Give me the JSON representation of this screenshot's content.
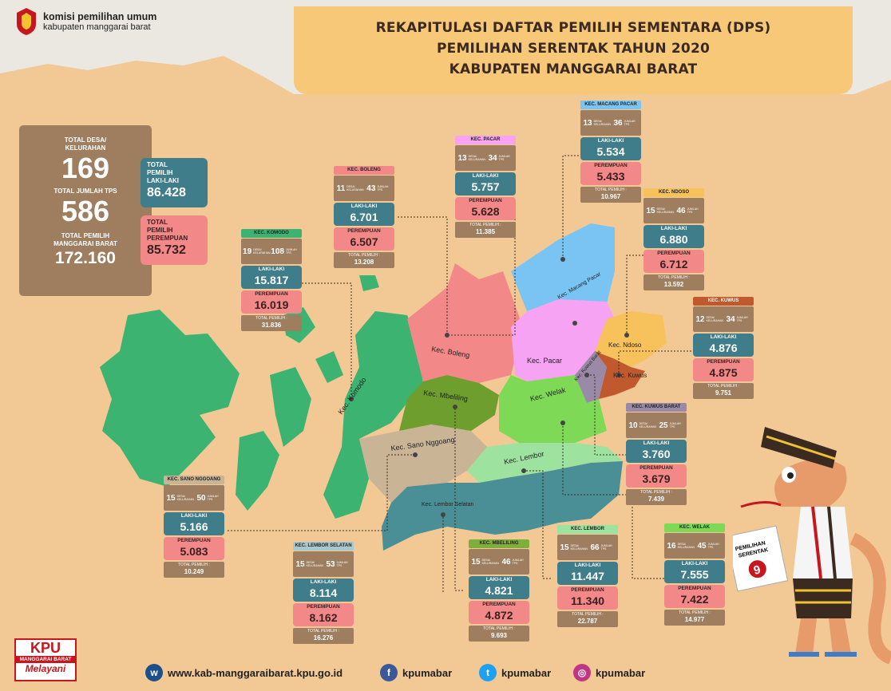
{
  "logo": {
    "line1": "komisi pemilihan umum",
    "line2": "kabupaten manggarai barat"
  },
  "title": {
    "line1": "REKAPITULASI DAFTAR PEMILIH SEMENTARA (DPS)",
    "line2": "PEMILIHAN SERENTAK TAHUN 2020",
    "line3": "KABUPATEN MANGGARAI BARAT"
  },
  "totals": {
    "desa_label_1": "TOTAL DESA/",
    "desa_label_2": "KELURAHAN",
    "desa_value": "169",
    "tps_label": "TOTAL JUMLAH TPS",
    "tps_value": "586",
    "pemilih_label_1": "TOTAL PEMILIH",
    "pemilih_label_2": "MANGGARAI BARAT",
    "pemilih_value": "172.160",
    "laki_label_1": "TOTAL",
    "laki_label_2": "PEMILIH",
    "laki_label_3": "LAKI-LAKI",
    "laki_value": "86.428",
    "perempuan_label_1": "TOTAL",
    "perempuan_label_2": "PEMILIH",
    "perempuan_label_3": "PEREMPUAN",
    "perempuan_value": "85.732"
  },
  "labels": {
    "desa_unit": "DESA/ KELURAHAN",
    "tps_unit": "JUMLAH TPS",
    "laki": "LAKI-LAKI",
    "perempuan": "PEREMPUAN",
    "total": "TOTAL PEMILIH :"
  },
  "districts": [
    {
      "name": "KEC. KOMODO",
      "title_color": "#3cb371",
      "desa": "19",
      "tps": "108",
      "laki": "15.817",
      "perempuan": "16.019",
      "total": "31.836"
    },
    {
      "name": "KEC. BOLENG",
      "title_color": "#f28888",
      "desa": "11",
      "tps": "43",
      "laki": "6.701",
      "perempuan": "6.507",
      "total": "13.208"
    },
    {
      "name": "KEC. PACAR",
      "title_color": "#f5a3f2",
      "desa": "13",
      "tps": "34",
      "laki": "5.757",
      "perempuan": "5.628",
      "total": "11.385"
    },
    {
      "name": "KEC. MACANG PACAR",
      "title_color": "#79c4f2",
      "desa": "13",
      "tps": "36",
      "laki": "5.534",
      "perempuan": "5.433",
      "total": "10.967"
    },
    {
      "name": "KEC. NDOSO",
      "title_color": "#f7c15c",
      "desa": "15",
      "tps": "46",
      "laki": "6.880",
      "perempuan": "6.712",
      "total": "13.592"
    },
    {
      "name": "KEC. KUWUS",
      "title_color": "#c05a2e",
      "desa": "12",
      "tps": "34",
      "laki": "4.876",
      "perempuan": "4.875",
      "total": "9.751"
    },
    {
      "name": "KEC. KUWUS BARAT",
      "title_color": "#9a8aa8",
      "desa": "10",
      "tps": "25",
      "laki": "3.760",
      "perempuan": "3.679",
      "total": "7.439"
    },
    {
      "name": "KEC. WELAK",
      "title_color": "#7ed957",
      "desa": "16",
      "tps": "45",
      "laki": "7.555",
      "perempuan": "7.422",
      "total": "14.977"
    },
    {
      "name": "KEC. LEMBOR",
      "title_color": "#9ee2a0",
      "desa": "15",
      "tps": "66",
      "laki": "11.447",
      "perempuan": "11.340",
      "total": "22.787"
    },
    {
      "name": "KEC. MBELILING",
      "title_color": "#7fae3a",
      "desa": "15",
      "tps": "46",
      "laki": "4.821",
      "perempuan": "4.872",
      "total": "9.693"
    },
    {
      "name": "KEC. LEMBOR SELATAN",
      "title_color": "#a8c8d0",
      "desa": "15",
      "tps": "53",
      "laki": "8.114",
      "perempuan": "8.162",
      "total": "16.276"
    },
    {
      "name": "KEC. SANO NGGOANG",
      "title_color": "#c9b496",
      "desa": "15",
      "tps": "50",
      "laki": "5.166",
      "perempuan": "5.083",
      "total": "10.249"
    }
  ],
  "map_labels": {
    "komodo": "Kec. Komodo",
    "boleng": "Kec. Boleng",
    "mbeliling": "Kec. Mbeliling",
    "sano": "Kec. Sano Nggoang",
    "lembor_selatan": "Kec. Lembor Selatan",
    "lembor": "Kec. Lembor",
    "welak": "Kec. Welak",
    "pacar": "Kec. Pacar",
    "macang": "Kec. Macang Pacar",
    "ndoso": "Kec. Ndoso",
    "kuwus": "Kec. Kuwus",
    "kuwus_barat": "Kec. Kuwus Barat"
  },
  "map_colors": {
    "komodo": "#3cb371",
    "boleng": "#f28888",
    "mbeliling": "#6e9e2e",
    "sano": "#c9b496",
    "lembor_selatan": "#4a8f96",
    "lembor": "#9ee2a0",
    "welak": "#7ed957",
    "pacar": "#f5a3f2",
    "macang": "#79c4f2",
    "ndoso": "#f7c15c",
    "kuwus": "#c05a2e",
    "kuwus_barat": "#9a8aa8"
  },
  "poster": {
    "line1": "PEMILIHAN",
    "line2": "SERENTAK",
    "number": "9"
  },
  "footer": {
    "website": "www.kab-manggaraibarat.kpu.go.id",
    "facebook": "kpumabar",
    "twitter": "kpumabar",
    "instagram": "kpumabar",
    "kpu_line1": "KPU",
    "kpu_line2": "MANGGARAI BARAT",
    "kpu_line3": "Melayani"
  }
}
